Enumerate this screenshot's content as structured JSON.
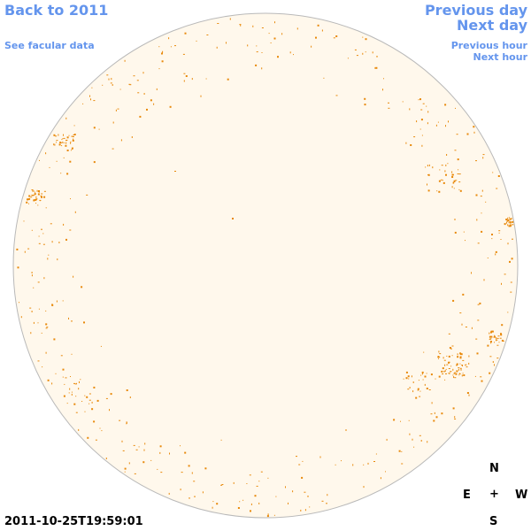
{
  "nav": {
    "back_label": "Back to 2011",
    "facular_label": "See facular data",
    "previous_day_label": "Previous day",
    "next_day_label": "Next day",
    "previous_hour_label": "Previous hour",
    "next_hour_label": "Next hour"
  },
  "timestamp": "2011-10-25T19:59:01",
  "compass": {
    "north": "N",
    "east": "E",
    "center": "+",
    "west": "W",
    "south": "S"
  },
  "colors": {
    "disk_fill": "#fff8ec",
    "disk_stroke": "#b9b9b9",
    "feature": "#e8890a",
    "link": "#6495ed"
  }
}
